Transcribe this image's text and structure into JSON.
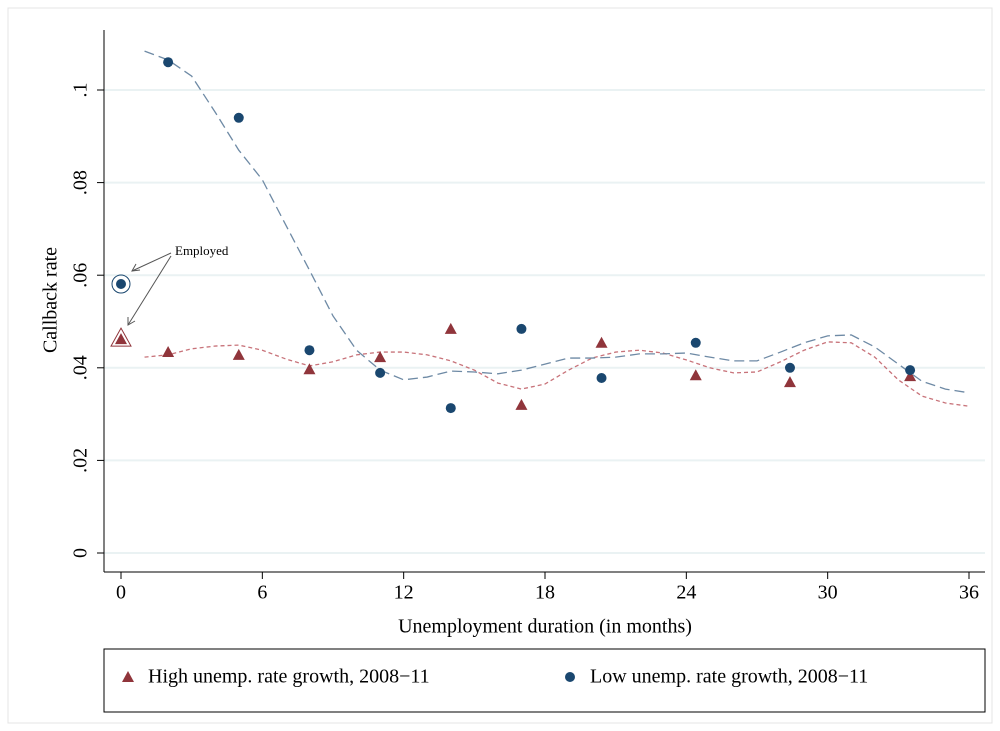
{
  "chart_data": {
    "type": "scatter",
    "x_label": "Unemployment duration (in months)",
    "y_label": "Callback rate",
    "annotation": "Employed",
    "xlim": [
      0,
      36
    ],
    "xticks": [
      0,
      6,
      12,
      18,
      24,
      30,
      36
    ],
    "ylim": [
      0,
      0.11
    ],
    "yticks": [
      0,
      {
        "value": 0.02,
        "label": ".02"
      },
      {
        "value": 0.04,
        "label": ".04"
      },
      {
        "value": 0.06,
        "label": ".06"
      },
      {
        "value": 0.08,
        "label": ".08"
      },
      {
        "value": 0.1,
        "label": ".1"
      }
    ],
    "grid": true,
    "legend": "bottom",
    "x": [
      0,
      2,
      5,
      8,
      11,
      14,
      17,
      20.4,
      24.4,
      28.4,
      33.5
    ],
    "series": [
      {
        "name": "High unemp. rate growth, 2008−11",
        "color": "#90353b",
        "marker": "triangle",
        "values": [
          0.0462,
          0.0434,
          0.0428,
          0.0397,
          0.0423,
          0.0484,
          0.032,
          0.0454,
          0.0384,
          0.0369,
          0.0382
        ]
      },
      {
        "name": "Low unemp. rate growth, 2008−11",
        "color": "#1a476f",
        "marker": "circle",
        "values": [
          0.0581,
          0.106,
          0.094,
          0.0438,
          0.0389,
          0.0313,
          0.0484,
          0.0378,
          0.0454,
          0.04,
          0.0395
        ]
      }
    ],
    "fit_x": [
      1,
      2,
      3,
      4,
      5,
      6,
      7,
      8,
      9,
      10,
      11,
      12,
      13,
      14,
      15,
      16,
      17,
      18,
      19,
      20,
      21,
      22,
      23,
      24,
      25,
      26,
      27,
      28,
      29,
      30,
      31,
      32,
      33,
      34,
      35,
      36
    ],
    "fits": [
      {
        "color": "#c8737a",
        "dash": "short",
        "values": [
          0.0423,
          0.0428,
          0.0441,
          0.0447,
          0.0449,
          0.0438,
          0.0419,
          0.0404,
          0.0413,
          0.0428,
          0.0434,
          0.0434,
          0.0428,
          0.0415,
          0.0395,
          0.0367,
          0.0354,
          0.0365,
          0.0395,
          0.0421,
          0.0434,
          0.0438,
          0.0432,
          0.0417,
          0.04,
          0.0389,
          0.0391,
          0.0413,
          0.0438,
          0.0456,
          0.0454,
          0.0423,
          0.0374,
          0.0339,
          0.0324,
          0.0317
        ]
      },
      {
        "color": "#6e8aa5",
        "dash": "long",
        "values": [
          0.1084,
          0.1065,
          0.103,
          0.0952,
          0.087,
          0.0806,
          0.0708,
          0.0611,
          0.0512,
          0.0438,
          0.0395,
          0.0374,
          0.038,
          0.0393,
          0.0391,
          0.0387,
          0.0395,
          0.0408,
          0.0421,
          0.0421,
          0.0423,
          0.043,
          0.043,
          0.0432,
          0.0423,
          0.0415,
          0.0415,
          0.0434,
          0.0454,
          0.0469,
          0.0471,
          0.0445,
          0.0408,
          0.0371,
          0.0354,
          0.0346
        ]
      }
    ]
  }
}
